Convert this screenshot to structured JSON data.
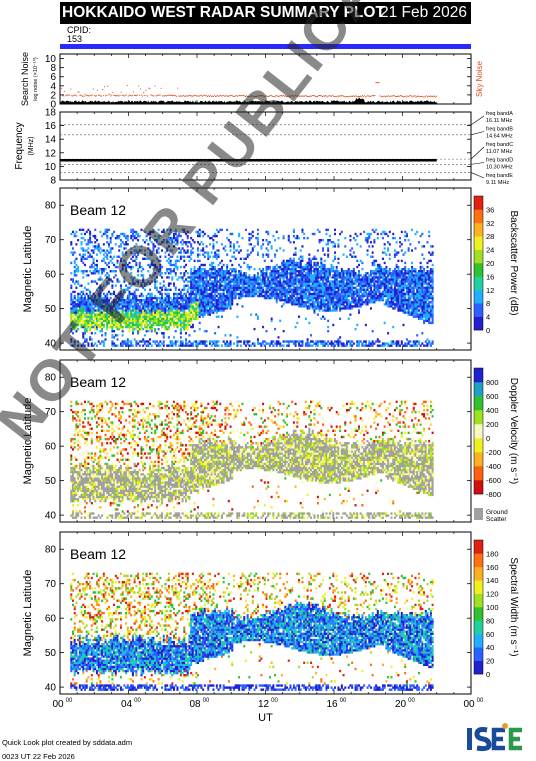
{
  "header": {
    "title": "HOKKAIDO WEST RADAR SUMMARY PLOT",
    "date": "21 Feb 2026",
    "cpid_label": "CPID:",
    "cpid_value": "153"
  },
  "footer": {
    "credit": "Quick Look plot created by sddata.adm",
    "timestamp": "0023 UT 22 Feb 2026",
    "watermark": "NOT FOR PUBLICATION",
    "logo_text": "ISEE"
  },
  "colors": {
    "cpid_bar": "#2a2aff",
    "sky_noise": "#e05020",
    "search_noise": "#000000",
    "ground_scatter": "#a0a0a0"
  },
  "chart_data": [
    {
      "type": "line",
      "id": "noise",
      "ylabel": "Search Noise",
      "ylabel_units": "log noise (×10⁻¹⁰)",
      "right_label": "Sky Noise",
      "y_ticks": [
        0,
        2,
        4,
        6,
        8,
        10
      ],
      "ylim": [
        0,
        11
      ],
      "xlim": [
        0,
        24
      ],
      "series": [
        {
          "name": "Sky Noise",
          "color": "#e05020",
          "x": [
            0,
            1,
            2,
            3,
            4,
            5,
            6,
            7,
            8,
            9,
            10,
            11,
            12,
            13,
            14,
            15,
            16,
            17,
            18,
            18.5,
            19,
            20,
            21,
            22
          ],
          "y": [
            2.2,
            2.0,
            2.3,
            2.1,
            2.0,
            1.9,
            2.0,
            1.8,
            1.9,
            2.0,
            2.0,
            2.1,
            2.0,
            1.9,
            2.0,
            1.9,
            2.0,
            2.0,
            2.1,
            4.8,
            2.0,
            2.0,
            1.9,
            1.8
          ]
        },
        {
          "name": "Search Noise",
          "color": "#000000",
          "x": [
            0,
            2,
            4,
            6,
            8,
            10,
            12,
            14,
            16,
            17.5,
            18,
            20,
            22
          ],
          "y": [
            0.6,
            0.6,
            0.5,
            0.5,
            0.5,
            0.4,
            0.5,
            0.5,
            0.5,
            1.2,
            0.6,
            0.5,
            0.5
          ]
        }
      ]
    },
    {
      "type": "line",
      "id": "frequency",
      "ylabel": "Frequency",
      "ylabel_units": "(MHz)",
      "y_ticks": [
        8,
        10,
        12,
        14,
        16,
        18
      ],
      "ylim": [
        8,
        18
      ],
      "xlim": [
        0,
        24
      ],
      "freq_bands": [
        {
          "label": "freq bandA",
          "value": "16.11 MHz",
          "mhz": 16.11
        },
        {
          "label": "freq bandB",
          "value": "14.64 MHz",
          "mhz": 14.64
        },
        {
          "label": "freq bandC",
          "value": "11.07 MHz",
          "mhz": 11.07
        },
        {
          "label": "freq bandD",
          "value": "10.30 MHz",
          "mhz": 10.3
        },
        {
          "label": "freq bandE",
          "value": "9.11 MHz",
          "mhz": 9.11
        }
      ],
      "series": [
        {
          "name": "operating frequency",
          "x": [
            0,
            22
          ],
          "y": [
            10.9,
            10.9
          ]
        }
      ]
    },
    {
      "type": "heatmap",
      "id": "power",
      "beam": "Beam 12",
      "ylabel": "Magnetic Latitude",
      "y_ticks": [
        40,
        50,
        60,
        70,
        80
      ],
      "ylim": [
        38,
        85
      ],
      "xlim": [
        0,
        24
      ],
      "colorbar_label": "Backscatter Power (dB)",
      "colorbar_ticks": [
        0,
        4,
        8,
        12,
        16,
        20,
        24,
        28,
        32,
        36
      ],
      "colorbar_colors": [
        "#2020d0",
        "#2a60ff",
        "#20b0ff",
        "#20d0a0",
        "#30c030",
        "#a0e020",
        "#f0f020",
        "#ffb020",
        "#ff7010",
        "#e02010"
      ]
    },
    {
      "type": "heatmap",
      "id": "velocity",
      "beam": "Beam 12",
      "ylabel": "Magnetic Latitude",
      "y_ticks": [
        40,
        50,
        60,
        70,
        80
      ],
      "ylim": [
        38,
        85
      ],
      "xlim": [
        0,
        24
      ],
      "colorbar_label": "Doppler Velocity (m s⁻¹)",
      "colorbar_ticks": [
        -800,
        -600,
        -400,
        -200,
        0,
        200,
        400,
        600,
        800
      ],
      "colorbar_colors": [
        "#d01010",
        "#ff6010",
        "#ffb020",
        "#f0f020",
        "#f8f8c0",
        "#a0e020",
        "#30c030",
        "#20a0c0",
        "#2020d0"
      ],
      "ground_scatter_label": "Ground Scatter"
    },
    {
      "type": "heatmap",
      "id": "width",
      "beam": "Beam 12",
      "ylabel": "Magnetic Latitude",
      "y_ticks": [
        40,
        50,
        60,
        70,
        80
      ],
      "ylim": [
        38,
        85
      ],
      "xlim": [
        0,
        24
      ],
      "xlabel": "UT",
      "x_ticks": [
        "00",
        "04",
        "08",
        "12",
        "16",
        "20",
        "00"
      ],
      "x_tick_sup": "00",
      "colorbar_label": "Spectral Width (m s⁻¹)",
      "colorbar_ticks": [
        0,
        20,
        40,
        60,
        80,
        100,
        120,
        140,
        160,
        180
      ],
      "colorbar_colors": [
        "#2020d0",
        "#2a60ff",
        "#20b0ff",
        "#20d0a0",
        "#30c030",
        "#a0e020",
        "#f0f020",
        "#ffb020",
        "#ff7010",
        "#e02010"
      ]
    }
  ]
}
